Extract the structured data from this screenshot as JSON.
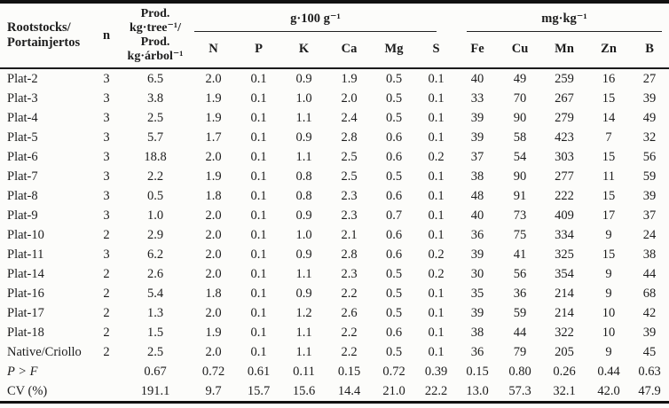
{
  "colors": {
    "text": "#1c1c1c",
    "rule": "#111111",
    "background": "#fcfcfa"
  },
  "table": {
    "header": {
      "col1_lines": [
        "Rootstocks/",
        "Portainjertos"
      ],
      "col2": "n",
      "col3_lines": [
        "Prod.",
        "kg·tree⁻¹/",
        "Prod.",
        "kg·árbol⁻¹"
      ],
      "group1": {
        "label": "g·100 g⁻¹",
        "columns": [
          "N",
          "P",
          "K",
          "Ca",
          "Mg",
          "S"
        ]
      },
      "group2": {
        "label": "mg·kg⁻¹",
        "columns": [
          "Fe",
          "Cu",
          "Mn",
          "Zn",
          "B"
        ]
      }
    },
    "rows": [
      {
        "name": "Plat-2",
        "n": "3",
        "prod": "6.5",
        "values": [
          "2.0",
          "0.1",
          "0.9",
          "1.9",
          "0.5",
          "0.1",
          "40",
          "49",
          "259",
          "16",
          "27"
        ]
      },
      {
        "name": "Plat-3",
        "n": "3",
        "prod": "3.8",
        "values": [
          "1.9",
          "0.1",
          "1.0",
          "2.0",
          "0.5",
          "0.1",
          "33",
          "70",
          "267",
          "15",
          "39"
        ]
      },
      {
        "name": "Plat-4",
        "n": "3",
        "prod": "2.5",
        "values": [
          "1.9",
          "0.1",
          "1.1",
          "2.4",
          "0.5",
          "0.1",
          "39",
          "90",
          "279",
          "14",
          "49"
        ]
      },
      {
        "name": "Plat-5",
        "n": "3",
        "prod": "5.7",
        "values": [
          "1.7",
          "0.1",
          "0.9",
          "2.8",
          "0.6",
          "0.1",
          "39",
          "58",
          "423",
          "7",
          "32"
        ]
      },
      {
        "name": "Plat-6",
        "n": "3",
        "prod": "18.8",
        "values": [
          "2.0",
          "0.1",
          "1.1",
          "2.5",
          "0.6",
          "0.2",
          "37",
          "54",
          "303",
          "15",
          "56"
        ]
      },
      {
        "name": "Plat-7",
        "n": "3",
        "prod": "2.2",
        "values": [
          "1.9",
          "0.1",
          "0.8",
          "2.5",
          "0.5",
          "0.1",
          "38",
          "90",
          "277",
          "11",
          "59"
        ]
      },
      {
        "name": "Plat-8",
        "n": "3",
        "prod": "0.5",
        "values": [
          "1.8",
          "0.1",
          "0.8",
          "2.3",
          "0.6",
          "0.1",
          "48",
          "91",
          "222",
          "15",
          "39"
        ]
      },
      {
        "name": "Plat-9",
        "n": "3",
        "prod": "1.0",
        "values": [
          "2.0",
          "0.1",
          "0.9",
          "2.3",
          "0.7",
          "0.1",
          "40",
          "73",
          "409",
          "17",
          "37"
        ]
      },
      {
        "name": "Plat-10",
        "n": "2",
        "prod": "2.9",
        "values": [
          "2.0",
          "0.1",
          "1.0",
          "2.1",
          "0.6",
          "0.1",
          "36",
          "75",
          "334",
          "9",
          "24"
        ]
      },
      {
        "name": "Plat-11",
        "n": "3",
        "prod": "6.2",
        "values": [
          "2.0",
          "0.1",
          "0.9",
          "2.8",
          "0.6",
          "0.2",
          "39",
          "41",
          "325",
          "15",
          "38"
        ]
      },
      {
        "name": "Plat-14",
        "n": "2",
        "prod": "2.6",
        "values": [
          "2.0",
          "0.1",
          "1.1",
          "2.3",
          "0.5",
          "0.2",
          "30",
          "56",
          "354",
          "9",
          "44"
        ]
      },
      {
        "name": "Plat-16",
        "n": "2",
        "prod": "5.4",
        "values": [
          "1.8",
          "0.1",
          "0.9",
          "2.2",
          "0.5",
          "0.1",
          "35",
          "36",
          "214",
          "9",
          "68"
        ]
      },
      {
        "name": "Plat-17",
        "n": "2",
        "prod": "1.3",
        "values": [
          "2.0",
          "0.1",
          "1.2",
          "2.6",
          "0.5",
          "0.1",
          "39",
          "59",
          "214",
          "10",
          "42"
        ]
      },
      {
        "name": "Plat-18",
        "n": "2",
        "prod": "1.5",
        "values": [
          "1.9",
          "0.1",
          "1.1",
          "2.2",
          "0.6",
          "0.1",
          "38",
          "44",
          "322",
          "10",
          "39"
        ]
      },
      {
        "name": "Native/Criollo",
        "n": "2",
        "prod": "2.5",
        "values": [
          "2.0",
          "0.1",
          "1.1",
          "2.2",
          "0.5",
          "0.1",
          "36",
          "79",
          "205",
          "9",
          "45"
        ]
      }
    ],
    "footer_rows": [
      {
        "name": "P > F",
        "italic": true,
        "n": "",
        "prod": "0.67",
        "values": [
          "0.72",
          "0.61",
          "0.11",
          "0.15",
          "0.72",
          "0.39",
          "0.15",
          "0.80",
          "0.26",
          "0.44",
          "0.63"
        ]
      },
      {
        "name": "CV (%)",
        "italic": false,
        "n": "",
        "prod": "191.1",
        "values": [
          "9.7",
          "15.7",
          "15.6",
          "14.4",
          "21.0",
          "22.2",
          "13.0",
          "57.3",
          "32.1",
          "42.0",
          "47.9"
        ]
      }
    ]
  }
}
